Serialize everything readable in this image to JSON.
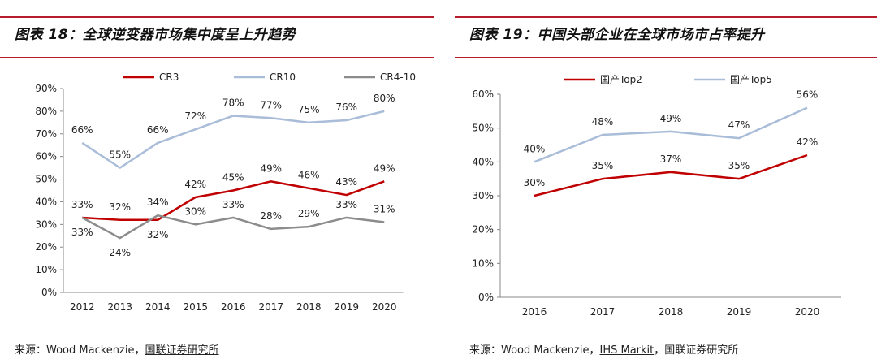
{
  "left": {
    "title": "图表 18：全球逆变器市场集中度呈上升趋势",
    "source_prefix": "来源：",
    "source_parts": [
      "Wood Mackenzie",
      "，",
      "国联证券研究所"
    ],
    "chart_data": {
      "type": "line",
      "x": [
        "2012",
        "2013",
        "2014",
        "2015",
        "2016",
        "2017",
        "2018",
        "2019",
        "2020"
      ],
      "ylim": [
        0,
        90
      ],
      "ytick_labels": [
        "0%",
        "10%",
        "20%",
        "30%",
        "40%",
        "50%",
        "60%",
        "70%",
        "80%",
        "90%"
      ],
      "legend_position": "top",
      "series": [
        {
          "name": "CR3",
          "color": "#c00000",
          "values": [
            33,
            32,
            32,
            42,
            45,
            49,
            46,
            43,
            49
          ],
          "labels": [
            "33%",
            "32%",
            "32%",
            "42%",
            "45%",
            "49%",
            "46%",
            "43%",
            "49%"
          ],
          "label_pos": [
            "above",
            "above",
            "below",
            "above",
            "above",
            "above",
            "above",
            "above",
            "above"
          ]
        },
        {
          "name": "CR10",
          "color": "#a9bcd8",
          "values": [
            66,
            55,
            66,
            72,
            78,
            77,
            75,
            76,
            80
          ],
          "labels": [
            "66%",
            "55%",
            "66%",
            "72%",
            "78%",
            "77%",
            "75%",
            "76%",
            "80%"
          ],
          "label_pos": [
            "above",
            "above",
            "above",
            "above",
            "above",
            "above",
            "above",
            "above",
            "above"
          ]
        },
        {
          "name": "CR4-10",
          "color": "#8c8c8c",
          "values": [
            33,
            24,
            34,
            30,
            33,
            28,
            29,
            33,
            31
          ],
          "labels": [
            "33%",
            "24%",
            "34%",
            "30%",
            "33%",
            "28%",
            "29%",
            "33%",
            "31%"
          ],
          "label_pos": [
            "below",
            "below",
            "above",
            "above",
            "above",
            "above",
            "above",
            "above",
            "above"
          ]
        }
      ]
    }
  },
  "right": {
    "title": "图表 19：中国头部企业在全球市场市占率提升",
    "source_prefix": "来源：",
    "source_parts": [
      "Wood Mackenzie",
      "，",
      "IHS Markit",
      "，",
      "国联证券研究所"
    ],
    "chart_data": {
      "type": "line",
      "x": [
        "2016",
        "2017",
        "2018",
        "2019",
        "2020"
      ],
      "ylim": [
        0,
        60
      ],
      "ytick_labels": [
        "0%",
        "10%",
        "20%",
        "30%",
        "40%",
        "50%",
        "60%"
      ],
      "legend_position": "top",
      "series": [
        {
          "name": "国产Top2",
          "color": "#c00000",
          "values": [
            30,
            35,
            37,
            35,
            42
          ],
          "labels": [
            "30%",
            "35%",
            "37%",
            "35%",
            "42%"
          ]
        },
        {
          "name": "国产Top5",
          "color": "#a9bcd8",
          "values": [
            40,
            48,
            49,
            47,
            56
          ],
          "labels": [
            "40%",
            "48%",
            "49%",
            "47%",
            "56%"
          ]
        }
      ]
    }
  }
}
